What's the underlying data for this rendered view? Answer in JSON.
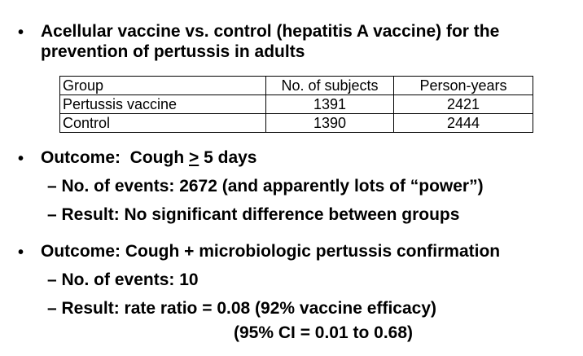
{
  "bullets": [
    {
      "symbol": "•",
      "line1": "Acellular vaccine vs. control (hepatitis A vaccine) for the",
      "line2": "prevention of pertussis in adults"
    },
    {
      "symbol": "•",
      "prefix": "Outcome:  Cough ",
      "ge": ">",
      "suffix": " 5 days",
      "subs": [
        "– No. of events: 2672 (and apparently lots of “power”)",
        "– Result: No significant difference between groups"
      ]
    },
    {
      "symbol": "•",
      "text": "Outcome:  Cough + microbiologic pertussis confirmation",
      "subs": [
        "– No. of events: 10",
        "– Result: rate ratio = 0.08 (92% vaccine efficacy)"
      ],
      "continuation": "(95% CI = 0.01 to 0.68)"
    }
  ],
  "table": {
    "headers": [
      "Group",
      "No. of subjects",
      "Person-years"
    ],
    "rows": [
      [
        "Pertussis vaccine",
        "1391",
        "2421"
      ],
      [
        "Control",
        "1390",
        "2444"
      ]
    ]
  }
}
